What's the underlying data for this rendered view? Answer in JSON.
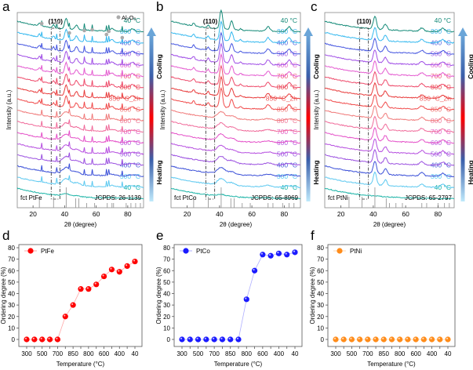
{
  "chart_data": [
    {
      "panel": "a",
      "type": "line",
      "title": "",
      "xlabel": "2θ (degree)",
      "ylabel": "Intensity (a.u.)",
      "xlim": [
        10,
        90
      ],
      "xticks": [
        20,
        40,
        60,
        80
      ],
      "reference_label": "fct PtFe",
      "jcpds": "JCPDS: 26-1139",
      "peak_label": "(110)",
      "legend": "Al2O3",
      "heating_label": "Heating",
      "cooling_label": "Cooling",
      "series_labels": [
        "40 °C",
        "300 °C",
        "400 °C",
        "500 °C",
        "600 °C",
        "700 °C",
        "800 °C",
        "850 °C",
        "850 °C_2h",
        "800 °C",
        "700 °C",
        "600 °C",
        "500 °C",
        "400 °C",
        "300 °C",
        "40 °C"
      ],
      "reference_peaks": [
        24,
        33,
        41,
        47,
        49,
        54,
        59,
        67,
        70,
        71,
        79,
        82,
        85,
        88
      ],
      "ordered_from_index": 8
    },
    {
      "panel": "b",
      "type": "line",
      "xlabel": "2θ (degree)",
      "ylabel": "Intensity (a.u.)",
      "xlim": [
        10,
        90
      ],
      "xticks": [
        20,
        40,
        60,
        80
      ],
      "reference_label": "fct PtCo",
      "jcpds": "JCPDS: 65-8969",
      "peak_label": "(110)",
      "heating_label": "Heating",
      "cooling_label": "Cooling",
      "series_labels": [
        "40 °C",
        "300 °C",
        "400 °C",
        "500 °C",
        "600 °C",
        "700 °C",
        "800 °C",
        "850 °C",
        "850 °C_2h",
        "800 °C",
        "700 °C",
        "600 °C",
        "500 °C",
        "400 °C",
        "300 °C",
        "40 °C"
      ],
      "reference_peaks": [
        24,
        33,
        41,
        47,
        49,
        54,
        59,
        70,
        73,
        79,
        83,
        86
      ],
      "ordered_from_index": 8
    },
    {
      "panel": "c",
      "type": "line",
      "xlabel": "2θ (degree)",
      "ylabel": "Intensity (a.u.)",
      "xlim": [
        10,
        90
      ],
      "xticks": [
        20,
        40,
        60,
        80
      ],
      "reference_label": "fct PtNi",
      "jcpds": "JCPDS: 65-2797",
      "peak_label": "(110)",
      "heating_label": "Heating",
      "cooling_label": "Cooling",
      "series_labels": [
        "40 °C",
        "300 °C",
        "400 °C",
        "500 °C",
        "600 °C",
        "700 °C",
        "800 °C",
        "850 °C",
        "850 °C_2h",
        "800 °C",
        "700 °C",
        "600 °C",
        "500 °C",
        "400 °C",
        "300 °C",
        "40 °C"
      ],
      "reference_peaks": [
        25,
        33,
        41,
        48,
        50,
        54,
        58,
        70,
        73,
        80,
        84,
        87
      ],
      "ordered_from_index": 99
    },
    {
      "panel": "d",
      "type": "scatter",
      "xlabel": "Temperature (°C)",
      "ylabel": "Ordering degree (%)",
      "ylim": [
        0,
        80
      ],
      "yticks": [
        0,
        10,
        20,
        30,
        40,
        50,
        60,
        70,
        80
      ],
      "xtick_labels": [
        "300",
        "500",
        "700",
        "850",
        "800",
        "600",
        "400",
        "40"
      ],
      "legend": "PtFe",
      "color": "#ff0000",
      "values": [
        0,
        0,
        0,
        0,
        0,
        20,
        30,
        44,
        44,
        48,
        55,
        61,
        59,
        64,
        68
      ]
    },
    {
      "panel": "e",
      "type": "scatter",
      "xlabel": "Temperature (°C)",
      "ylabel": "Ordering degree (%)",
      "ylim": [
        0,
        80
      ],
      "yticks": [
        0,
        10,
        20,
        30,
        40,
        50,
        60,
        70,
        80
      ],
      "xtick_labels": [
        "300",
        "500",
        "700",
        "850",
        "800",
        "600",
        "400",
        "40"
      ],
      "legend": "PtCo",
      "color": "#1a1aff",
      "values": [
        0,
        0,
        0,
        0,
        0,
        0,
        0,
        0,
        35,
        60,
        74,
        73,
        75,
        74,
        76
      ]
    },
    {
      "panel": "f",
      "type": "scatter",
      "xlabel": "Temperature (°C)",
      "ylabel": "Ordering degree (%)",
      "ylim": [
        0,
        80
      ],
      "yticks": [
        0,
        10,
        20,
        30,
        40,
        50,
        60,
        70,
        80
      ],
      "xtick_labels": [
        "300",
        "500",
        "700",
        "850",
        "800",
        "600",
        "400",
        "40"
      ],
      "legend": "PtNi",
      "color": "#ff8c1a",
      "values": [
        0,
        0,
        0,
        0,
        0,
        0,
        0,
        0,
        0,
        0,
        0,
        0,
        0,
        0,
        0
      ]
    }
  ],
  "series_colors": [
    "#1ab3a6",
    "#5bc8f0",
    "#3a4fd8",
    "#9a4fe0",
    "#b64fe0",
    "#e44fc8",
    "#f06a9a",
    "#f07a7a",
    "#f04a4a",
    "#e83a3a",
    "#ee4a6a",
    "#e45ad0",
    "#a04ee6",
    "#4455e0",
    "#33b8ef",
    "#148a78"
  ],
  "label_colors": [
    "#1ab3a6",
    "#5bc8f0",
    "#4a5fd8",
    "#9a5fe0",
    "#b65fe0",
    "#e45fc8",
    "#f07a9a",
    "#f07a7a",
    "#f05a5a",
    "#e84a4a",
    "#ee5a7a",
    "#e46ad0",
    "#a05ee6",
    "#5465e0",
    "#43b8ef",
    "#148a78"
  ]
}
